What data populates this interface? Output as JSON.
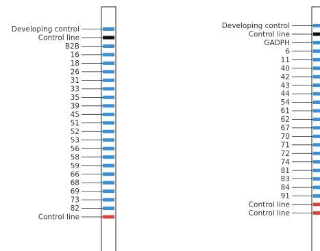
{
  "colors": {
    "band_blue": "#3b8fd4",
    "band_black": "#111111",
    "band_red": "#d9433f",
    "strip_outline": "#222222",
    "leader_line": "#222222",
    "text": "#333333"
  },
  "strips": [
    {
      "bands": [
        {
          "label": "Developing control",
          "color": "band_blue"
        },
        {
          "label": "Control line",
          "color": "band_black"
        },
        {
          "label": "B2B",
          "color": "band_blue"
        },
        {
          "label": "16",
          "color": "band_blue"
        },
        {
          "label": "18",
          "color": "band_blue"
        },
        {
          "label": "26",
          "color": "band_blue"
        },
        {
          "label": "31",
          "color": "band_blue"
        },
        {
          "label": "33",
          "color": "band_blue"
        },
        {
          "label": "35",
          "color": "band_blue"
        },
        {
          "label": "39",
          "color": "band_blue"
        },
        {
          "label": "45",
          "color": "band_blue"
        },
        {
          "label": "51",
          "color": "band_blue"
        },
        {
          "label": "52",
          "color": "band_blue"
        },
        {
          "label": "53",
          "color": "band_blue"
        },
        {
          "label": "56",
          "color": "band_blue"
        },
        {
          "label": "58",
          "color": "band_blue"
        },
        {
          "label": "59",
          "color": "band_blue"
        },
        {
          "label": "66",
          "color": "band_blue"
        },
        {
          "label": "68",
          "color": "band_blue"
        },
        {
          "label": "69",
          "color": "band_blue"
        },
        {
          "label": "73",
          "color": "band_blue"
        },
        {
          "label": "82",
          "color": "band_blue"
        },
        {
          "label": "Control line",
          "color": "band_red"
        }
      ]
    },
    {
      "bands": [
        {
          "label": "Developing control",
          "color": "band_blue"
        },
        {
          "label": "Control line",
          "color": "band_black"
        },
        {
          "label": "GADPH",
          "color": "band_blue"
        },
        {
          "label": "6",
          "color": "band_blue"
        },
        {
          "label": "11",
          "color": "band_blue"
        },
        {
          "label": "40",
          "color": "band_blue"
        },
        {
          "label": "42",
          "color": "band_blue"
        },
        {
          "label": "43",
          "color": "band_blue"
        },
        {
          "label": "44",
          "color": "band_blue"
        },
        {
          "label": "54",
          "color": "band_blue"
        },
        {
          "label": "61",
          "color": "band_blue"
        },
        {
          "label": "62",
          "color": "band_blue"
        },
        {
          "label": "67",
          "color": "band_blue"
        },
        {
          "label": "70",
          "color": "band_blue"
        },
        {
          "label": "71",
          "color": "band_blue"
        },
        {
          "label": "72",
          "color": "band_blue"
        },
        {
          "label": "74",
          "color": "band_blue"
        },
        {
          "label": "81",
          "color": "band_blue"
        },
        {
          "label": "83",
          "color": "band_blue"
        },
        {
          "label": "84",
          "color": "band_blue"
        },
        {
          "label": "91",
          "color": "band_blue"
        },
        {
          "label": "Control line",
          "color": "band_red"
        },
        {
          "label": "Control line",
          "color": "band_red"
        }
      ]
    }
  ]
}
